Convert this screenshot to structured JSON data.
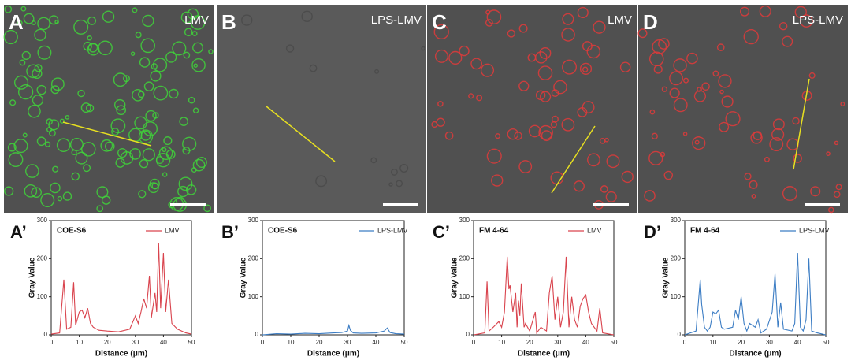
{
  "images": [
    {
      "label": "A",
      "caption": "LMV"
    },
    {
      "label": "B",
      "caption": "LPS-LMV"
    },
    {
      "label": "C",
      "caption": "LMV"
    },
    {
      "label": "D",
      "caption": "LPS-LMV"
    }
  ],
  "chart_data": [
    {
      "type": "line",
      "panel_label": "A’",
      "annotation": "COE-S6",
      "xlabel": "Distance (μm)",
      "ylabel": "Gray Value",
      "x": [
        0,
        3,
        4.5,
        5.5,
        7,
        8,
        8.7,
        10,
        11,
        12,
        13,
        14,
        15,
        17,
        20,
        24,
        28,
        30,
        31,
        32,
        33,
        34,
        35,
        35.7,
        37,
        37.6,
        38.3,
        39,
        40,
        40.8,
        41.8,
        43,
        45,
        48,
        50
      ],
      "series": [
        {
          "name": "LMV",
          "color": "#d9434d",
          "values": [
            2,
            5,
            145,
            15,
            20,
            138,
            25,
            60,
            65,
            45,
            70,
            30,
            20,
            12,
            10,
            8,
            15,
            50,
            30,
            60,
            95,
            70,
            155,
            45,
            110,
            60,
            240,
            70,
            215,
            60,
            145,
            30,
            15,
            5,
            2
          ]
        }
      ],
      "xlim": [
        0,
        50
      ],
      "ylim": [
        0,
        300
      ],
      "xticks": [
        0,
        10,
        20,
        30,
        40,
        50
      ],
      "yticks": [
        0,
        100,
        200,
        300
      ]
    },
    {
      "type": "line",
      "panel_label": "B’",
      "annotation": "COE-S6",
      "xlabel": "Distance (μm)",
      "ylabel": "Gray Value",
      "x": [
        0,
        5,
        10,
        15,
        20,
        25,
        28,
        30,
        30.5,
        31,
        32,
        35,
        40,
        43,
        44,
        45,
        47,
        50
      ],
      "series": [
        {
          "name": "LPS-LMV",
          "color": "#3c7dc4",
          "values": [
            0,
            3,
            2,
            4,
            3,
            5,
            6,
            10,
            25,
            12,
            5,
            4,
            5,
            10,
            18,
            6,
            3,
            2
          ]
        }
      ],
      "xlim": [
        0,
        50
      ],
      "ylim": [
        0,
        300
      ],
      "xticks": [
        0,
        10,
        20,
        30,
        40,
        50
      ],
      "yticks": [
        0,
        100,
        200,
        300
      ]
    },
    {
      "type": "line",
      "panel_label": "C’",
      "annotation": "FM 4-64",
      "xlabel": "Distance (μm)",
      "ylabel": "Gray Value",
      "x": [
        0,
        4,
        4.8,
        5.5,
        7,
        9,
        10,
        11,
        12,
        12.6,
        13,
        14,
        15,
        15.5,
        16,
        16.5,
        17,
        18,
        18.5,
        20,
        22,
        22.5,
        24,
        26,
        27,
        28,
        29,
        30,
        31,
        32,
        33,
        34,
        35,
        36,
        37,
        38,
        39,
        40,
        41,
        42,
        44,
        45,
        46,
        50
      ],
      "series": [
        {
          "name": "LMV",
          "color": "#d9434d",
          "values": [
            0,
            5,
            140,
            10,
            20,
            35,
            20,
            60,
            205,
            120,
            130,
            60,
            110,
            20,
            90,
            50,
            135,
            20,
            30,
            10,
            60,
            5,
            20,
            10,
            110,
            155,
            40,
            100,
            20,
            60,
            205,
            20,
            100,
            40,
            20,
            75,
            95,
            105,
            60,
            30,
            10,
            70,
            5,
            0
          ]
        }
      ],
      "xlim": [
        0,
        50
      ],
      "ylim": [
        0,
        300
      ],
      "xticks": [
        0,
        10,
        20,
        30,
        40,
        50
      ],
      "yticks": [
        0,
        100,
        200,
        300
      ]
    },
    {
      "type": "line",
      "panel_label": "D’",
      "annotation": "FM 4-64",
      "xlabel": "Distance (μm)",
      "ylabel": "Gray Value",
      "x": [
        0,
        4,
        5.5,
        6,
        7,
        8,
        9,
        10,
        11,
        12,
        13,
        14,
        17,
        18,
        19,
        20,
        21,
        22,
        23,
        25,
        26,
        27,
        29,
        31,
        32,
        33,
        34,
        35,
        38,
        39,
        40,
        41,
        42,
        43,
        44,
        45,
        47,
        50
      ],
      "series": [
        {
          "name": "LPS-LMV",
          "color": "#3c7dc4",
          "values": [
            0,
            10,
            145,
            80,
            20,
            10,
            20,
            60,
            55,
            65,
            20,
            15,
            20,
            65,
            40,
            100,
            30,
            10,
            30,
            20,
            40,
            5,
            15,
            60,
            160,
            20,
            85,
            15,
            10,
            30,
            215,
            20,
            10,
            40,
            200,
            10,
            5,
            0
          ]
        }
      ],
      "xlim": [
        0,
        50
      ],
      "ylim": [
        0,
        300
      ],
      "xticks": [
        0,
        10,
        20,
        30,
        40,
        50
      ],
      "yticks": [
        0,
        100,
        200,
        300
      ]
    }
  ]
}
